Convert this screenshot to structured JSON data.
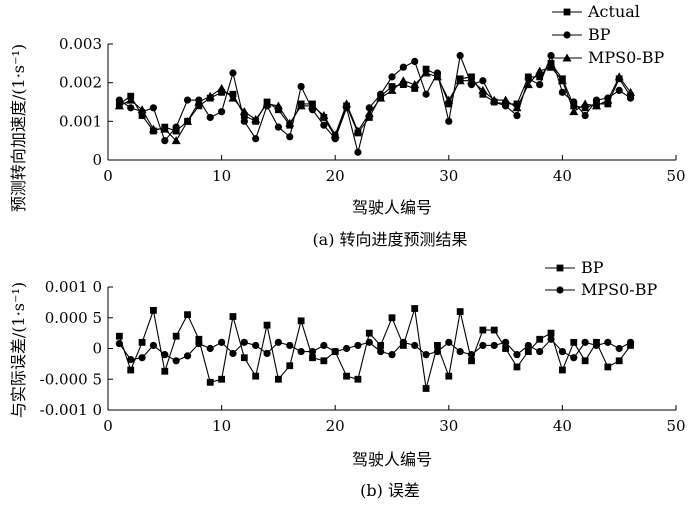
{
  "chart_data": [
    {
      "type": "line",
      "caption": "(a) 转向进度预测结果",
      "xlabel": "驾驶人编号",
      "ylabel": "预测转向加速度/(1·s⁻¹)",
      "xlim": [
        0,
        50
      ],
      "ylim": [
        0,
        0.003
      ],
      "x_ticks": [
        "0",
        "10",
        "20",
        "30",
        "40",
        "50"
      ],
      "y_ticks": [
        "0",
        "0.001",
        "0.002",
        "0.003"
      ],
      "legend_position": "top-right",
      "x": [
        1,
        2,
        3,
        4,
        5,
        6,
        7,
        8,
        9,
        10,
        11,
        12,
        13,
        14,
        15,
        16,
        17,
        18,
        19,
        20,
        21,
        22,
        23,
        24,
        25,
        26,
        27,
        28,
        29,
        30,
        31,
        32,
        33,
        34,
        35,
        36,
        37,
        38,
        39,
        40,
        41,
        42,
        43,
        44,
        45,
        46
      ],
      "series": [
        {
          "name": "Actual",
          "marker": "square",
          "values": [
            0.00145,
            0.00165,
            0.00115,
            0.00075,
            0.00085,
            0.00075,
            0.001,
            0.0014,
            0.0016,
            0.00175,
            0.0017,
            0.00115,
            0.001,
            0.0015,
            0.0013,
            0.0009,
            0.00145,
            0.00145,
            0.0011,
            0.0006,
            0.0014,
            0.0007,
            0.0011,
            0.00165,
            0.0019,
            0.00195,
            0.00185,
            0.00235,
            0.0022,
            0.00145,
            0.0021,
            0.00215,
            0.0017,
            0.0015,
            0.00145,
            0.00145,
            0.00215,
            0.00215,
            0.0025,
            0.0021,
            0.0014,
            0.00135,
            0.00145,
            0.00145,
            0.0021,
            0.00165
          ]
        },
        {
          "name": "BP",
          "marker": "circle",
          "values": [
            0.00155,
            0.00135,
            0.00125,
            0.00135,
            0.0005,
            0.00085,
            0.00155,
            0.00155,
            0.0011,
            0.00125,
            0.00225,
            0.001,
            0.00055,
            0.0014,
            0.00085,
            0.0006,
            0.0019,
            0.0013,
            0.0009,
            0.00055,
            0.00135,
            0.0002,
            0.00135,
            0.0017,
            0.00215,
            0.0024,
            0.00255,
            0.0017,
            0.00225,
            0.001,
            0.0027,
            0.00195,
            0.00205,
            0.0015,
            0.0014,
            0.00115,
            0.0021,
            0.00195,
            0.0027,
            0.00175,
            0.0015,
            0.00115,
            0.00155,
            0.0016,
            0.0018,
            0.0016
          ]
        },
        {
          "name": "MPS0-BP",
          "marker": "triangle",
          "values": [
            0.0014,
            0.00155,
            0.0013,
            0.0008,
            0.0008,
            0.0005,
            0.001,
            0.0015,
            0.00165,
            0.00185,
            0.0016,
            0.00125,
            0.00105,
            0.00145,
            0.0014,
            0.00095,
            0.0014,
            0.0014,
            0.00115,
            0.00065,
            0.00145,
            0.00075,
            0.0012,
            0.0016,
            0.0018,
            0.00205,
            0.00195,
            0.00225,
            0.00215,
            0.00155,
            0.00205,
            0.00205,
            0.0018,
            0.00155,
            0.00155,
            0.00135,
            0.00195,
            0.0023,
            0.0024,
            0.00205,
            0.00125,
            0.00145,
            0.0014,
            0.00155,
            0.00215,
            0.00175
          ]
        }
      ]
    },
    {
      "type": "line",
      "caption": "(b) 误差",
      "xlabel": "驾驶人编号",
      "ylabel": "与实际误差/(1·s⁻¹)",
      "xlim": [
        0,
        50
      ],
      "ylim": [
        -0.001,
        0.001
      ],
      "x_ticks": [
        "0",
        "10",
        "20",
        "30",
        "40",
        "50"
      ],
      "y_ticks": [
        "-0.001 0",
        "-0.000 5",
        "0",
        "0.000 5",
        "0.001 0"
      ],
      "legend_position": "top-right",
      "x": [
        1,
        2,
        3,
        4,
        5,
        6,
        7,
        8,
        9,
        10,
        11,
        12,
        13,
        14,
        15,
        16,
        17,
        18,
        19,
        20,
        21,
        22,
        23,
        24,
        25,
        26,
        27,
        28,
        29,
        30,
        31,
        32,
        33,
        34,
        35,
        36,
        37,
        38,
        39,
        40,
        41,
        42,
        43,
        44,
        45,
        46
      ],
      "series": [
        {
          "name": "BP",
          "marker": "square",
          "values": [
            0.0002,
            -0.00035,
            0.0001,
            0.00062,
            -0.00037,
            0.0002,
            0.00055,
            0.00015,
            -0.00055,
            -0.0005,
            0.00052,
            -0.00015,
            -0.00045,
            0.00038,
            -0.0005,
            -0.00028,
            0.00045,
            -0.00015,
            -0.0002,
            -5e-05,
            -0.00045,
            -0.0005,
            0.00025,
            5e-05,
            0.0005,
            5e-05,
            0.00065,
            -0.00065,
            5e-05,
            -0.00045,
            0.0006,
            -0.0002,
            0.0003,
            0.0003,
            0.0,
            -0.0003,
            -5e-05,
            0.00015,
            0.00025,
            -0.00035,
            0.0001,
            -0.0002,
            0.0001,
            -0.0003,
            -0.0002,
            5e-05
          ]
        },
        {
          "name": "MPS0-BP",
          "marker": "circle",
          "values": [
            8e-05,
            -0.00018,
            -0.00015,
            5e-05,
            -0.0001,
            -0.0002,
            -0.00012,
            8e-05,
            0.0,
            0.0001,
            -8e-05,
            0.0001,
            5e-05,
            -8e-05,
            0.0001,
            5e-05,
            -5e-05,
            -5e-05,
            5e-05,
            -5e-05,
            0.0,
            5e-05,
            0.0001,
            -5e-05,
            -0.0001,
            0.0001,
            5e-05,
            -0.0001,
            -5e-05,
            0.0001,
            -5e-05,
            -0.0001,
            5e-05,
            5e-05,
            0.0001,
            -0.0001,
            5e-05,
            -5e-05,
            0.00015,
            -5e-05,
            -0.00015,
            0.0001,
            5e-05,
            0.0001,
            0.0,
            0.0001
          ]
        }
      ]
    }
  ]
}
